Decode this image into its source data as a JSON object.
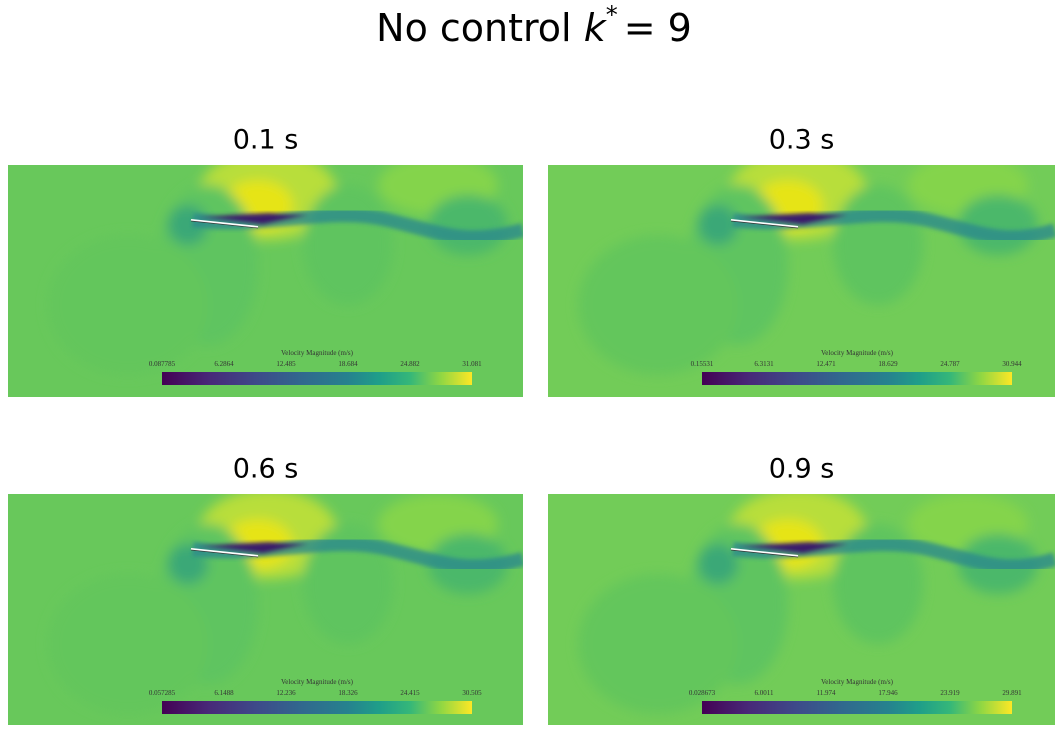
{
  "title": {
    "text": "No control",
    "var": "k",
    "sup": "*",
    "rest": "= 9"
  },
  "panels": [
    {
      "title": "0.1 s",
      "colorbar": {
        "label": "Velocity Magnitude (m/s)",
        "ticks": [
          "0.087785",
          "6.2864",
          "12.485",
          "18.684",
          "24.882",
          "31.081"
        ]
      }
    },
    {
      "title": "0.3 s",
      "colorbar": {
        "label": "Velocity Magnitude (m/s)",
        "ticks": [
          "0.15531",
          "6.3131",
          "12.471",
          "18.629",
          "24.787",
          "30.944"
        ]
      }
    },
    {
      "title": "0.6 s",
      "colorbar": {
        "label": "Velocity Magnitude (m/s)",
        "ticks": [
          "0.057285",
          "6.1488",
          "12.236",
          "18.326",
          "24.415",
          "30.505"
        ]
      }
    },
    {
      "title": "0.9 s",
      "colorbar": {
        "label": "Velocity Magnitude (m/s)",
        "ticks": [
          "0.028673",
          "6.0011",
          "11.974",
          "17.946",
          "23.919",
          "29.891"
        ]
      }
    }
  ]
}
